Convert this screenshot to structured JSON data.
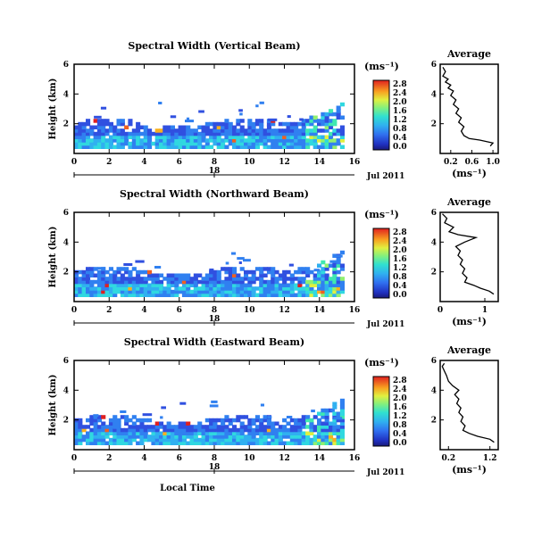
{
  "chart_data": [
    {
      "type": "heatmap",
      "title": "Spectral Width (Vertical Beam)",
      "ylabel": "Height (km)",
      "x_ticks": [
        "0",
        "2",
        "4",
        "6",
        "8",
        "10",
        "12",
        "14",
        "16"
      ],
      "y_ticks": [
        "2",
        "4",
        "6"
      ],
      "xlim": [
        0,
        16
      ],
      "ylim": [
        0,
        6
      ],
      "colorbar": {
        "unit": "(ms⁻¹)",
        "ticks": [
          "0.0",
          "0.4",
          "0.8",
          "1.2",
          "1.6",
          "2.0",
          "2.4",
          "2.8"
        ]
      },
      "date_label": "Jul 2011",
      "date_tick": "18",
      "average": {
        "title": "Average",
        "xlabel": "(ms⁻¹)",
        "x_ticks": [
          "0.2",
          "0.6",
          "1.0"
        ],
        "xlim": [
          0,
          1.1
        ],
        "y_ticks": [
          "2",
          "4",
          "6"
        ],
        "ylim": [
          0,
          6
        ],
        "profile": [
          [
            0.95,
            0.5
          ],
          [
            1.0,
            0.7
          ],
          [
            0.75,
            0.9
          ],
          [
            0.55,
            1.0
          ],
          [
            0.45,
            1.2
          ],
          [
            0.4,
            1.5
          ],
          [
            0.45,
            1.8
          ],
          [
            0.35,
            2.1
          ],
          [
            0.4,
            2.4
          ],
          [
            0.3,
            2.7
          ],
          [
            0.35,
            3.0
          ],
          [
            0.25,
            3.3
          ],
          [
            0.3,
            3.6
          ],
          [
            0.2,
            3.9
          ],
          [
            0.25,
            4.2
          ],
          [
            0.15,
            4.4
          ],
          [
            0.2,
            4.6
          ],
          [
            0.1,
            4.8
          ],
          [
            0.15,
            5.0
          ],
          [
            0.05,
            5.2
          ],
          [
            0.1,
            5.5
          ],
          [
            0.05,
            5.8
          ]
        ]
      }
    },
    {
      "type": "heatmap",
      "title": "Spectral Width (Northward Beam)",
      "ylabel": "Height (km)",
      "x_ticks": [
        "0",
        "2",
        "4",
        "6",
        "8",
        "10",
        "12",
        "14",
        "16"
      ],
      "y_ticks": [
        "2",
        "4",
        "6"
      ],
      "xlim": [
        0,
        16
      ],
      "ylim": [
        0,
        6
      ],
      "colorbar": {
        "unit": "(ms⁻¹)",
        "ticks": [
          "0.0",
          "0.4",
          "0.8",
          "1.2",
          "1.6",
          "2.0",
          "2.4",
          "2.8"
        ]
      },
      "date_label": "Jul 2011",
      "date_tick": "18",
      "average": {
        "title": "Average",
        "xlabel": "(ms⁻¹)",
        "x_ticks": [
          "0",
          "1"
        ],
        "xlim": [
          0,
          1.3
        ],
        "y_ticks": [
          "2",
          "4",
          "6"
        ],
        "ylim": [
          0,
          6
        ],
        "profile": [
          [
            1.2,
            0.5
          ],
          [
            1.1,
            0.7
          ],
          [
            0.9,
            0.9
          ],
          [
            0.75,
            1.1
          ],
          [
            0.55,
            1.3
          ],
          [
            0.6,
            1.6
          ],
          [
            0.5,
            1.9
          ],
          [
            0.55,
            2.2
          ],
          [
            0.45,
            2.5
          ],
          [
            0.5,
            2.8
          ],
          [
            0.4,
            3.1
          ],
          [
            0.45,
            3.4
          ],
          [
            0.35,
            3.7
          ],
          [
            0.55,
            4.0
          ],
          [
            0.8,
            4.3
          ],
          [
            0.4,
            4.5
          ],
          [
            0.2,
            4.7
          ],
          [
            0.3,
            5.0
          ],
          [
            0.1,
            5.3
          ],
          [
            0.15,
            5.6
          ],
          [
            0.05,
            5.9
          ]
        ]
      }
    },
    {
      "type": "heatmap",
      "title": "Spectral Width (Eastward Beam)",
      "ylabel": "Height (km)",
      "xlabel": "Local Time",
      "x_ticks": [
        "0",
        "2",
        "4",
        "6",
        "8",
        "10",
        "12",
        "14",
        "16"
      ],
      "y_ticks": [
        "2",
        "4",
        "6"
      ],
      "xlim": [
        0,
        16
      ],
      "ylim": [
        0,
        6
      ],
      "colorbar": {
        "unit": "(ms⁻¹)",
        "ticks": [
          "0.0",
          "0.4",
          "0.8",
          "1.2",
          "1.6",
          "2.0",
          "2.4",
          "2.8"
        ]
      },
      "date_label": "Jul 2011",
      "date_tick": "18",
      "average": {
        "title": "Average",
        "xlabel": "(ms⁻¹)",
        "x_ticks": [
          "0.2",
          "1.2"
        ],
        "xlim": [
          0,
          1.4
        ],
        "y_ticks": [
          "2",
          "4",
          "6"
        ],
        "ylim": [
          0,
          6
        ],
        "profile": [
          [
            1.3,
            0.5
          ],
          [
            1.2,
            0.7
          ],
          [
            0.9,
            0.9
          ],
          [
            0.7,
            1.1
          ],
          [
            0.55,
            1.3
          ],
          [
            0.6,
            1.6
          ],
          [
            0.5,
            1.9
          ],
          [
            0.55,
            2.2
          ],
          [
            0.45,
            2.5
          ],
          [
            0.5,
            2.8
          ],
          [
            0.4,
            3.1
          ],
          [
            0.45,
            3.4
          ],
          [
            0.35,
            3.7
          ],
          [
            0.45,
            4.0
          ],
          [
            0.3,
            4.3
          ],
          [
            0.2,
            4.6
          ],
          [
            0.15,
            5.0
          ],
          [
            0.1,
            5.3
          ],
          [
            0.05,
            5.6
          ],
          [
            0.1,
            5.8
          ]
        ]
      }
    }
  ]
}
